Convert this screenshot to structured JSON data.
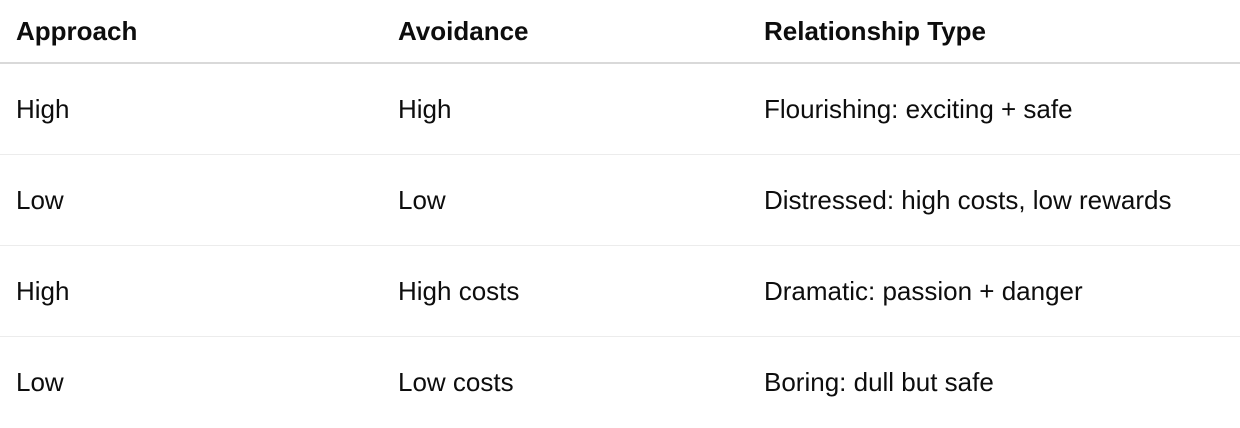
{
  "table": {
    "headers": [
      "Approach",
      "Avoidance",
      "Relationship Type"
    ],
    "rows": [
      [
        "High",
        "High",
        "Flourishing: exciting + safe"
      ],
      [
        "Low",
        "Low",
        "Distressed: high costs, low rewards"
      ],
      [
        "High",
        "High costs",
        "Dramatic: passion + danger"
      ],
      [
        "Low",
        "Low costs",
        "Boring: dull but safe"
      ]
    ]
  }
}
